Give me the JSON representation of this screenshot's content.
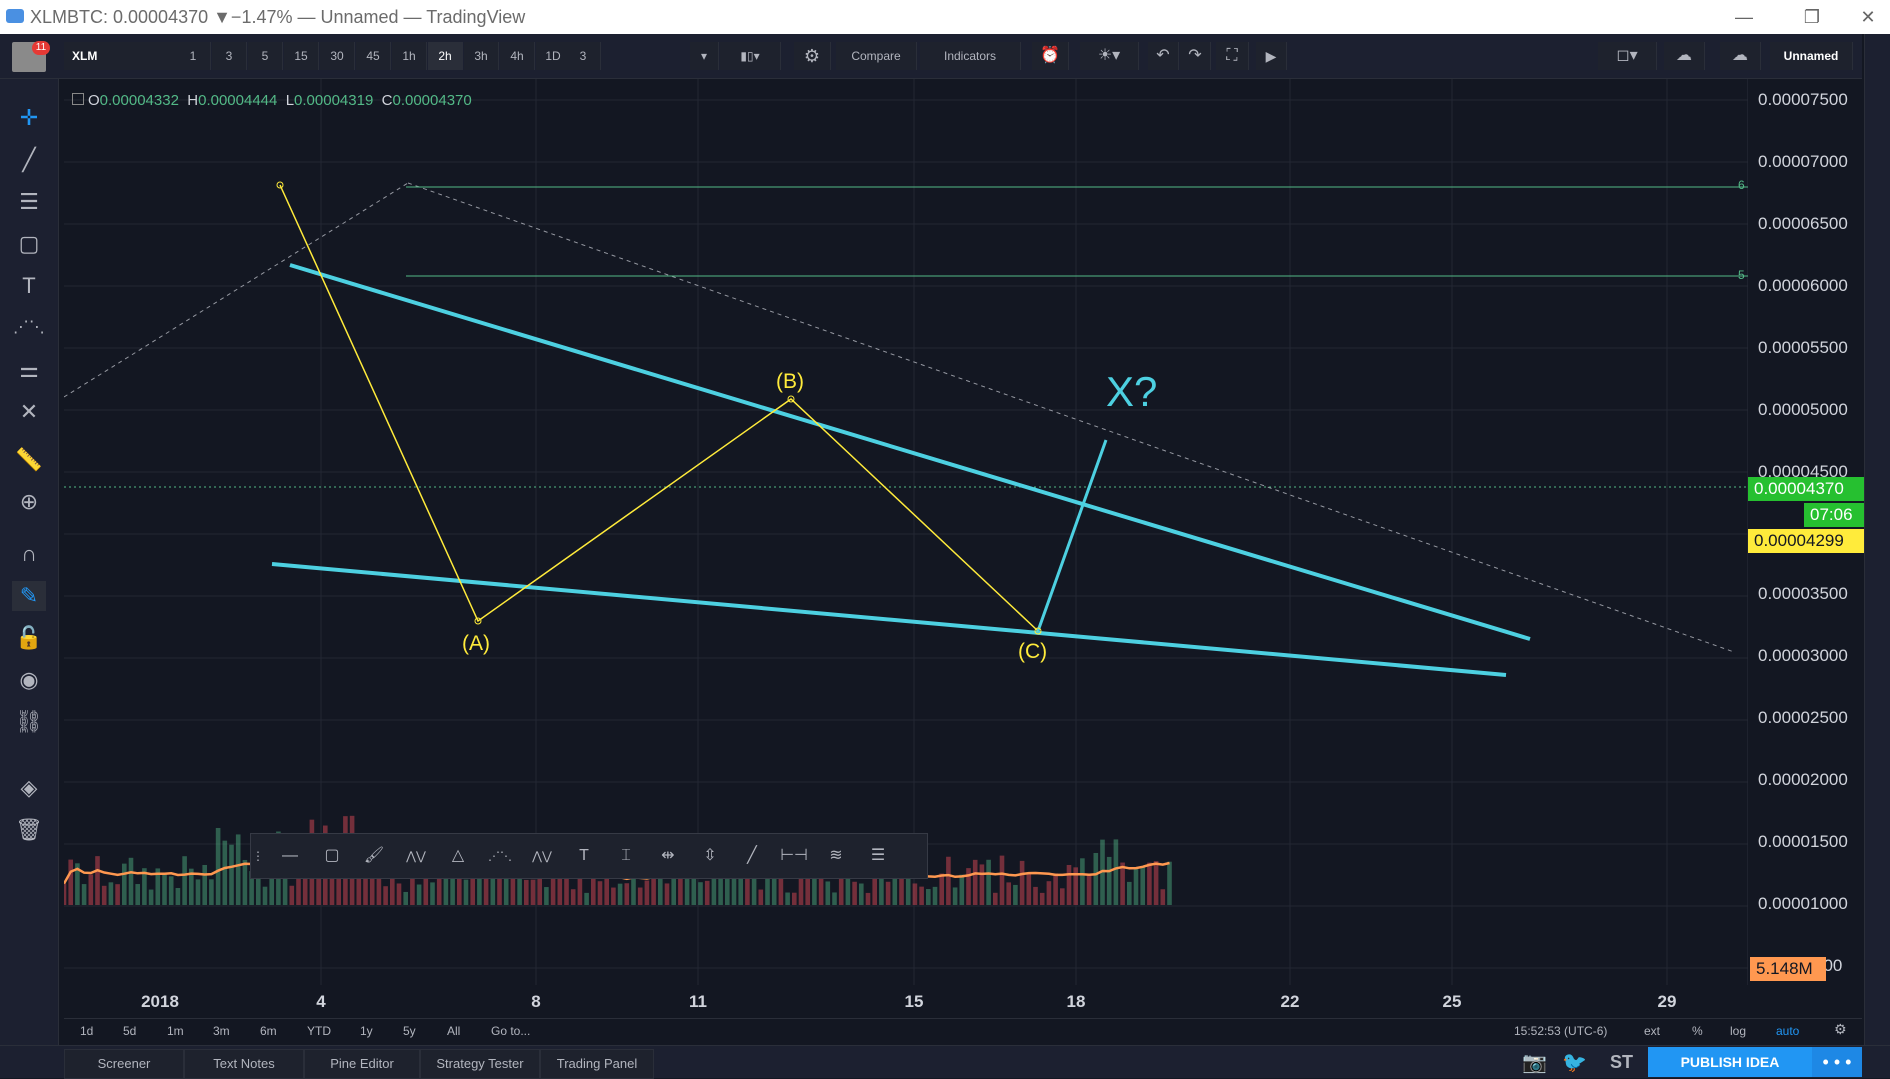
{
  "window": {
    "title": "XLMBTC: 0.00004370 ▼−1.47% — Unnamed — TradingView",
    "controls": [
      "—",
      "❐",
      "✕"
    ]
  },
  "toolbar": {
    "avatar_badge": "11",
    "symbol": "XLM",
    "intervals": [
      "1",
      "3",
      "5",
      "15",
      "30",
      "45",
      "1h",
      "2h",
      "3h",
      "4h",
      "1D",
      "3"
    ],
    "active_interval": "2h",
    "compare_label": "Compare",
    "indicators_label": "Indicators",
    "layout_name": "Unnamed"
  },
  "ohlc": {
    "o_label": "O",
    "o": "0.00004332",
    "h_label": "H",
    "h": "0.00004444",
    "l_label": "L",
    "l": "0.00004319",
    "c_label": "C",
    "c": "0.00004370"
  },
  "price_axis": {
    "labels": [
      "0.00007500",
      "0.00007000",
      "0.00006500",
      "0.00006000",
      "0.00005500",
      "0.00005000",
      "0.00004500",
      "0.00003500",
      "0.00003000",
      "0.00002500",
      "0.00002000",
      "0.00001500",
      "0.00001000",
      "500"
    ],
    "current_price": "0.00004370",
    "countdown": "07:06",
    "ma_value": "0.00004299",
    "volume": "5.148M",
    "fib_labels": [
      "6",
      "5"
    ]
  },
  "time_axis": {
    "labels": [
      "2018",
      "4",
      "8",
      "11",
      "15",
      "18",
      "22",
      "25",
      "29"
    ]
  },
  "annotations": {
    "a": "(A)",
    "b": "(B)",
    "c": "(C)",
    "x": "X?"
  },
  "range_bar": {
    "ranges": [
      "1d",
      "5d",
      "1m",
      "3m",
      "6m",
      "YTD",
      "1y",
      "5y",
      "All"
    ],
    "goto": "Go to...",
    "clock": "15:52:53 (UTC-6)",
    "options": [
      "ext",
      "%",
      "log",
      "auto"
    ]
  },
  "bottom_tabs": [
    "Screener",
    "Text Notes",
    "Pine Editor",
    "Strategy Tester",
    "Trading Panel"
  ],
  "publish_label": "PUBLISH IDEA",
  "publish_more": "• • •",
  "colors": {
    "background": "#131722",
    "up": "#53b987",
    "down": "#eb4d5c",
    "trendline": "#4dd0e1",
    "wave": "#ffeb3b",
    "ma": "#ffeb3b",
    "volume_ma": "#ff9850",
    "current_price_tag": "#26c030"
  },
  "chart_data": {
    "type": "candlestick",
    "symbol": "XLMBTC",
    "interval": "2h",
    "ylim": [
      4.5e-06,
      7.8e-06
    ],
    "x_ticks": [
      "2018",
      "4",
      "8",
      "11",
      "15",
      "18",
      "22",
      "25",
      "29"
    ],
    "wave_points": [
      {
        "label": "",
        "x": "3",
        "y": 6.8e-06
      },
      {
        "label": "(A)",
        "x": "7",
        "y": 3.3e-06
      },
      {
        "label": "(B)",
        "x": "12.5",
        "y": 5.1e-06
      },
      {
        "label": "(C)",
        "x": "17.3",
        "y": 3.2e-06
      }
    ],
    "current_price": 4.37e-05,
    "ma_last": 4.299e-05,
    "volume_last": "5.148M"
  }
}
